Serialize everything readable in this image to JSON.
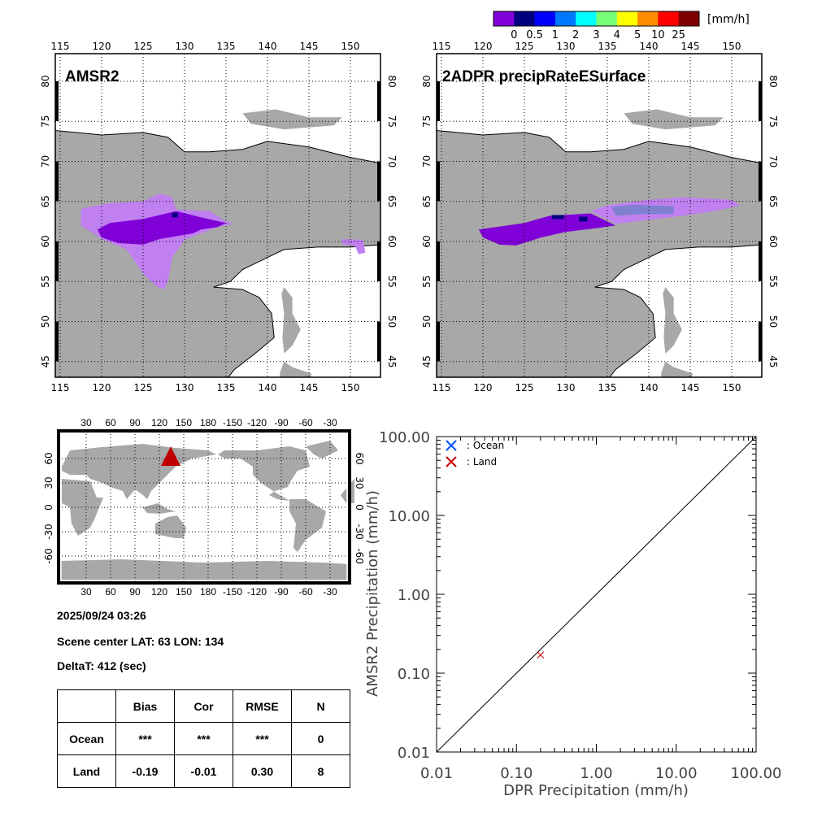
{
  "colorbar": {
    "colors": [
      "#8000d8",
      "#000080",
      "#0000ff",
      "#0078ff",
      "#00ffff",
      "#78ff78",
      "#ffff00",
      "#ff8c00",
      "#ff0000",
      "#800000"
    ],
    "labels": [
      "0",
      "0.5",
      "1",
      "2",
      "3",
      "4",
      "5",
      "10",
      "25"
    ],
    "unit": "[mm/h]"
  },
  "map_left": {
    "title": "AMSR2"
  },
  "map_right": {
    "title": "2ADPR precipRateESurface"
  },
  "regional_ticks": {
    "lon": [
      "115",
      "120",
      "125",
      "130",
      "135",
      "140",
      "145",
      "150"
    ],
    "lat": [
      "80",
      "75",
      "70",
      "65",
      "60",
      "55",
      "50",
      "45"
    ]
  },
  "colors": {
    "land": "#a8a8a8",
    "light_precip": "#c080f0",
    "dark_precip": "#8000d8",
    "bluegray": "#8080d0",
    "marker": "#c00000"
  },
  "world_map": {
    "lon_ticks": [
      "30",
      "60",
      "90",
      "120",
      "150",
      "180",
      "-150",
      "-120",
      "-90",
      "-60",
      "-30"
    ],
    "lat_ticks": [
      "60",
      "30",
      "0",
      "-30",
      "-60"
    ],
    "marker": {
      "lat": 63,
      "lon": 134
    }
  },
  "info": {
    "datetime": "2025/09/24 03:26",
    "scene_center": "Scene center LAT: 63   LON: 134",
    "deltat": "DeltaT:  412 (sec)"
  },
  "table": {
    "headers": [
      "",
      "Bias",
      "Cor",
      "RMSE",
      "N"
    ],
    "rows": [
      [
        "Ocean",
        "***",
        "***",
        "***",
        "0"
      ],
      [
        "Land",
        "-0.19",
        "-0.01",
        "0.30",
        "8"
      ]
    ]
  },
  "chart_data": {
    "type": "scatter",
    "xlabel": "DPR Precipitation (mm/h)",
    "ylabel": "AMSR2 Precipitation (mm/h)",
    "xscale": "log",
    "yscale": "log",
    "xlim": [
      0.01,
      100
    ],
    "ylim": [
      0.01,
      100
    ],
    "x_ticks": [
      "0.01",
      "0.10",
      "1.00",
      "10.00",
      "100.00"
    ],
    "y_ticks": [
      "0.01",
      "0.10",
      "1.00",
      "10.00",
      "100.00"
    ],
    "legend": [
      {
        "name": ": Ocean",
        "color": "#0050ff"
      },
      {
        "name": ": Land",
        "color": "#d00000"
      }
    ],
    "legend_position": "top-left",
    "series": [
      {
        "name": "Ocean",
        "points": []
      },
      {
        "name": "Land",
        "points": [
          [
            0.2,
            0.17
          ]
        ]
      }
    ],
    "reference_line": "1:1"
  }
}
